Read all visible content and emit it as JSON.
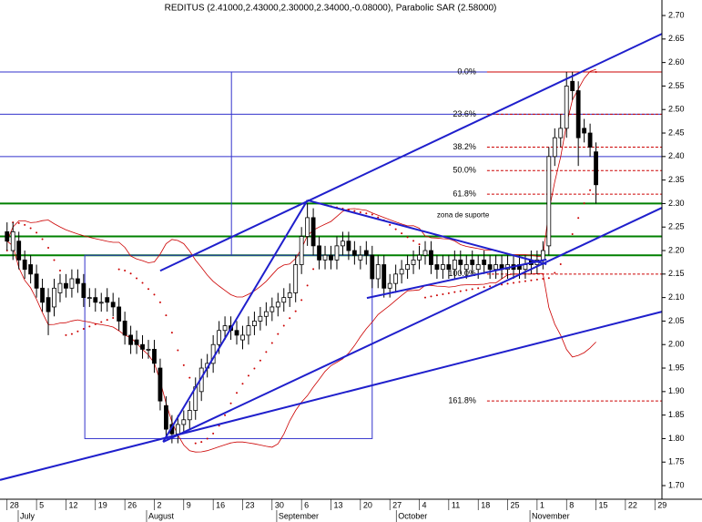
{
  "chart_data": {
    "type": "candlestick",
    "title": "REDITUS (2.41000,2.43000,2.30000,2.34000,-0.08000), Parabolic SAR (2.58000)",
    "x": [
      0,
      1,
      2,
      3,
      4,
      5,
      6,
      7,
      8,
      9,
      10,
      11,
      12,
      13,
      14,
      15,
      16,
      17,
      18,
      19,
      20,
      21,
      22,
      23,
      24,
      25,
      26,
      27,
      28,
      29,
      30,
      31,
      32,
      33,
      34,
      35,
      36,
      37,
      38,
      39,
      40,
      41,
      42,
      43,
      44,
      45,
      46,
      47,
      48,
      49,
      50,
      51,
      52,
      53,
      54,
      55,
      56,
      57,
      58,
      59,
      60,
      61,
      62,
      63,
      64,
      65,
      66,
      67,
      68,
      69,
      70,
      71,
      72,
      73,
      74,
      75,
      76,
      77,
      78,
      79,
      80,
      81,
      82,
      83,
      84,
      85,
      86,
      87,
      88,
      89,
      90,
      91,
      92,
      93,
      94,
      95,
      96,
      97,
      98,
      99,
      100
    ],
    "open": [
      2.24,
      2.2,
      2.22,
      2.18,
      2.17,
      2.15,
      2.12,
      2.1,
      2.08,
      2.11,
      2.13,
      2.12,
      2.14,
      2.13,
      2.1,
      2.1,
      2.09,
      2.1,
      2.09,
      2.08,
      2.05,
      2.02,
      2.01,
      2.0,
      1.99,
      1.99,
      1.95,
      1.87,
      1.83,
      1.81,
      1.83,
      1.84,
      1.86,
      1.9,
      1.95,
      1.96,
      2.0,
      2.03,
      2.04,
      2.03,
      2.01,
      2.02,
      2.04,
      2.05,
      2.06,
      2.07,
      2.08,
      2.09,
      2.1,
      2.11,
      2.17,
      2.23,
      2.27,
      2.21,
      2.18,
      2.19,
      2.18,
      2.21,
      2.22,
      2.2,
      2.18,
      2.2,
      2.19,
      2.14,
      2.17,
      2.12,
      2.13,
      2.15,
      2.16,
      2.17,
      2.18,
      2.19,
      2.2,
      2.17,
      2.16,
      2.17,
      2.16,
      2.18,
      2.16,
      2.18,
      2.16,
      2.18,
      2.17,
      2.16,
      2.17,
      2.16,
      2.17,
      2.17,
      2.16,
      2.18,
      2.17,
      2.18,
      2.21,
      2.4,
      2.44,
      2.46,
      2.56,
      2.54,
      2.46,
      2.45,
      2.41
    ],
    "high": [
      2.26,
      2.26,
      2.24,
      2.2,
      2.19,
      2.17,
      2.14,
      2.12,
      2.14,
      2.15,
      2.15,
      2.16,
      2.16,
      2.15,
      2.12,
      2.12,
      2.11,
      2.12,
      2.11,
      2.1,
      2.07,
      2.04,
      2.03,
      2.02,
      2.01,
      2.01,
      1.97,
      1.89,
      1.85,
      1.85,
      1.86,
      1.88,
      1.93,
      1.97,
      1.98,
      2.02,
      2.05,
      2.06,
      2.06,
      2.05,
      2.04,
      2.06,
      2.07,
      2.08,
      2.09,
      2.1,
      2.11,
      2.12,
      2.13,
      2.19,
      2.25,
      2.3,
      2.29,
      2.23,
      2.21,
      2.21,
      2.23,
      2.24,
      2.24,
      2.22,
      2.21,
      2.22,
      2.21,
      2.19,
      2.19,
      2.15,
      2.17,
      2.18,
      2.19,
      2.2,
      2.21,
      2.22,
      2.22,
      2.19,
      2.19,
      2.19,
      2.2,
      2.2,
      2.19,
      2.2,
      2.19,
      2.2,
      2.19,
      2.19,
      2.19,
      2.19,
      2.19,
      2.19,
      2.19,
      2.2,
      2.2,
      2.22,
      2.42,
      2.46,
      2.49,
      2.58,
      2.58,
      2.56,
      2.48,
      2.47,
      2.43
    ],
    "low": [
      2.2,
      2.18,
      2.16,
      2.14,
      2.13,
      2.1,
      2.07,
      2.02,
      2.06,
      2.09,
      2.1,
      2.1,
      2.11,
      2.08,
      2.08,
      2.07,
      2.07,
      2.07,
      2.06,
      2.03,
      2.0,
      1.98,
      1.98,
      1.97,
      1.97,
      1.94,
      1.86,
      1.8,
      1.79,
      1.79,
      1.81,
      1.82,
      1.84,
      1.88,
      1.93,
      1.94,
      1.98,
      2.01,
      2.01,
      2.0,
      1.99,
      2.0,
      2.02,
      2.03,
      2.04,
      2.05,
      2.06,
      2.07,
      2.08,
      2.09,
      2.15,
      2.21,
      2.19,
      2.16,
      2.16,
      2.16,
      2.16,
      2.19,
      2.18,
      2.17,
      2.16,
      2.17,
      2.12,
      2.12,
      2.1,
      2.1,
      2.11,
      2.13,
      2.14,
      2.15,
      2.16,
      2.17,
      2.15,
      2.14,
      2.14,
      2.14,
      2.14,
      2.15,
      2.14,
      2.15,
      2.14,
      2.15,
      2.14,
      2.14,
      2.14,
      2.14,
      2.14,
      2.14,
      2.14,
      2.15,
      2.15,
      2.16,
      2.19,
      2.38,
      2.42,
      2.44,
      2.52,
      2.38,
      2.43,
      2.4,
      2.3
    ],
    "close": [
      2.22,
      2.24,
      2.18,
      2.16,
      2.15,
      2.12,
      2.09,
      2.07,
      2.12,
      2.13,
      2.12,
      2.14,
      2.13,
      2.1,
      2.1,
      2.09,
      2.09,
      2.09,
      2.08,
      2.05,
      2.02,
      2.0,
      2.0,
      1.99,
      1.99,
      1.96,
      1.88,
      1.82,
      1.81,
      1.83,
      1.84,
      1.86,
      1.91,
      1.95,
      1.96,
      2.0,
      2.03,
      2.04,
      2.03,
      2.02,
      2.02,
      2.04,
      2.05,
      2.06,
      2.07,
      2.08,
      2.09,
      2.1,
      2.11,
      2.17,
      2.23,
      2.27,
      2.21,
      2.18,
      2.19,
      2.18,
      2.21,
      2.22,
      2.2,
      2.19,
      2.19,
      2.19,
      2.14,
      2.17,
      2.12,
      2.13,
      2.15,
      2.16,
      2.17,
      2.18,
      2.19,
      2.2,
      2.17,
      2.16,
      2.17,
      2.16,
      2.18,
      2.17,
      2.17,
      2.17,
      2.17,
      2.17,
      2.16,
      2.17,
      2.16,
      2.17,
      2.16,
      2.16,
      2.17,
      2.17,
      2.18,
      2.2,
      2.4,
      2.44,
      2.46,
      2.55,
      2.54,
      2.44,
      2.45,
      2.42,
      2.34
    ],
    "xlim": [
      -1.2,
      111.2
    ],
    "ylim": [
      1.671,
      2.733
    ],
    "xticks": [
      {
        "value": 0,
        "label": "28"
      },
      {
        "value": 5,
        "label": "5"
      },
      {
        "value": 10,
        "label": "12"
      },
      {
        "value": 15,
        "label": "19"
      },
      {
        "value": 20,
        "label": "26"
      },
      {
        "value": 25,
        "label": "2"
      },
      {
        "value": 30,
        "label": "9"
      },
      {
        "value": 35,
        "label": "16"
      },
      {
        "value": 40,
        "label": "23"
      },
      {
        "value": 45,
        "label": "30"
      },
      {
        "value": 50,
        "label": "6"
      },
      {
        "value": 55,
        "label": "13"
      },
      {
        "value": 60,
        "label": "20"
      },
      {
        "value": 65,
        "label": "27"
      },
      {
        "value": 70,
        "label": "4"
      },
      {
        "value": 75,
        "label": "11"
      },
      {
        "value": 80,
        "label": "18"
      },
      {
        "value": 85,
        "label": "25"
      },
      {
        "value": 90,
        "label": "1"
      },
      {
        "value": 95,
        "label": "8"
      },
      {
        "value": 100,
        "label": "15"
      },
      {
        "value": 105,
        "label": "22"
      },
      {
        "value": 110,
        "label": "29"
      }
    ],
    "months": [
      {
        "label": "July",
        "x": 2.2
      },
      {
        "label": "August",
        "x": 24
      },
      {
        "label": "September",
        "x": 46.1
      },
      {
        "label": "October",
        "x": 66.4
      },
      {
        "label": "November",
        "x": 89.1
      }
    ],
    "yticks": [
      {
        "value": 2.7,
        "label": "2.70"
      },
      {
        "value": 2.65,
        "label": "2.65"
      },
      {
        "value": 2.6,
        "label": "2.60"
      },
      {
        "value": 2.55,
        "label": "2.55"
      },
      {
        "value": 2.5,
        "label": "2.50"
      },
      {
        "value": 2.45,
        "label": "2.45"
      },
      {
        "value": 2.4,
        "label": "2.40"
      },
      {
        "value": 2.35,
        "label": "2.35"
      },
      {
        "value": 2.3,
        "label": "2.30"
      },
      {
        "value": 2.25,
        "label": "2.25"
      },
      {
        "value": 2.2,
        "label": "2.20"
      },
      {
        "value": 2.15,
        "label": "2.15"
      },
      {
        "value": 2.1,
        "label": "2.10"
      },
      {
        "value": 2.05,
        "label": "2.05"
      },
      {
        "value": 2.0,
        "label": "2.00"
      },
      {
        "value": 1.95,
        "label": "1.95"
      },
      {
        "value": 1.9,
        "label": "1.90"
      },
      {
        "value": 1.85,
        "label": "1.85"
      },
      {
        "value": 1.8,
        "label": "1.80"
      },
      {
        "value": 1.75,
        "label": "1.75"
      },
      {
        "value": 1.7,
        "label": "1.70"
      }
    ],
    "levels": [
      {
        "value": 2.58,
        "color": "#3333cc"
      },
      {
        "value": 2.49,
        "color": "#3333cc"
      },
      {
        "value": 2.4,
        "color": "#3333cc"
      },
      {
        "value": 2.19,
        "color": "#3333cc"
      },
      {
        "value": 2.3,
        "color": "#008000"
      },
      {
        "value": 2.23,
        "color": "#008000"
      },
      {
        "value": 2.19,
        "color": "#008000"
      }
    ],
    "fibonacci": {
      "x": [
        81.5,
        111.2
      ],
      "color": "#cc0000",
      "levels": [
        {
          "label": "0.0%",
          "value": 2.58
        },
        {
          "label": "23.6%",
          "value": 2.49
        },
        {
          "label": "38.2%",
          "value": 2.42
        },
        {
          "label": "50.0%",
          "value": 2.37
        },
        {
          "label": "61.8%",
          "value": 2.32
        },
        {
          "label": "100.0%",
          "value": 2.15
        },
        {
          "label": "161.8%",
          "value": 1.88
        }
      ]
    },
    "trend_color": "#1f1fcc",
    "trendlines": [
      {
        "x": [
          -1.2,
          111.2
        ],
        "y": [
          1.712,
          2.07
        ]
      },
      {
        "x": [
          26,
          111.2
        ],
        "y": [
          2.157,
          2.661
        ]
      },
      {
        "x": [
          26.5,
          111.2
        ],
        "y": [
          1.793,
          2.291
        ]
      },
      {
        "x": [
          51,
          91.6
        ],
        "y": [
          2.307,
          2.171
        ]
      },
      {
        "x": [
          61.1,
          91.6
        ],
        "y": [
          2.099,
          2.181
        ]
      },
      {
        "x": [
          26.5,
          51
        ],
        "y": [
          1.793,
          2.307
        ]
      }
    ],
    "box": {
      "x": [
        13.2,
        62.0
      ],
      "y": [
        1.8,
        2.19
      ]
    },
    "vline": {
      "x": 38.1,
      "y": [
        2.19,
        2.58
      ]
    },
    "annotation": {
      "text": "zona de suporte",
      "x": 73,
      "y": 2.275
    },
    "bands_color": "#cc0000",
    "sar_color": "#cc0000"
  }
}
